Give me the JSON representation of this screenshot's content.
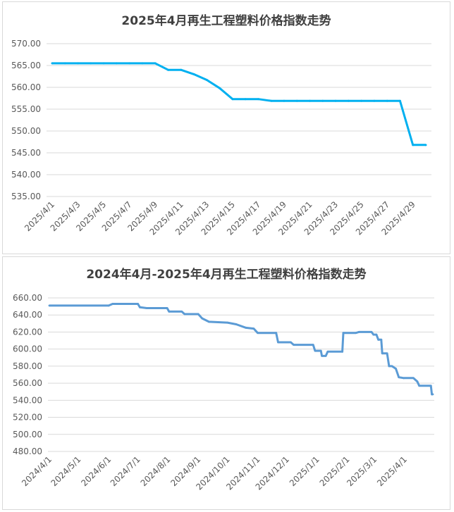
{
  "chart_data": [
    {
      "type": "line",
      "title": "2025年4月再生工程塑料价格指数走势",
      "ylim": [
        535,
        570
      ],
      "yticks": [
        "570.00",
        "565.00",
        "560.00",
        "555.00",
        "550.00",
        "545.00",
        "540.00",
        "535.00"
      ],
      "xticks": [
        "2025/4/1",
        "2025/4/3",
        "2025/4/5",
        "2025/4/7",
        "2025/4/9",
        "2025/4/11",
        "2025/4/13",
        "2025/4/15",
        "2025/4/17",
        "2025/4/19",
        "2025/4/21",
        "2025/4/23",
        "2025/4/25",
        "2025/4/27",
        "2025/4/29"
      ],
      "x": [
        "2025/4/1",
        "2025/4/2",
        "2025/4/3",
        "2025/4/4",
        "2025/4/5",
        "2025/4/6",
        "2025/4/7",
        "2025/4/8",
        "2025/4/9",
        "2025/4/10",
        "2025/4/11",
        "2025/4/12",
        "2025/4/13",
        "2025/4/14",
        "2025/4/15",
        "2025/4/16",
        "2025/4/17",
        "2025/4/18",
        "2025/4/19",
        "2025/4/20",
        "2025/4/21",
        "2025/4/22",
        "2025/4/23",
        "2025/4/24",
        "2025/4/25",
        "2025/4/26",
        "2025/4/27",
        "2025/4/28",
        "2025/4/29",
        "2025/4/30"
      ],
      "values": [
        565.5,
        565.5,
        565.5,
        565.5,
        565.5,
        565.5,
        565.5,
        565.5,
        565.5,
        564.0,
        564.0,
        563.0,
        561.7,
        559.8,
        557.3,
        557.3,
        557.3,
        556.9,
        556.9,
        556.9,
        556.9,
        556.9,
        556.9,
        556.9,
        556.9,
        556.9,
        556.9,
        556.9,
        546.8,
        546.8
      ],
      "color": "#00b0f0",
      "grid": true,
      "legend": "none"
    },
    {
      "type": "line",
      "title": "2024年4月-2025年4月再生工程塑料价格指数走势",
      "ylim": [
        480,
        660
      ],
      "yticks": [
        "660.00",
        "640.00",
        "620.00",
        "600.00",
        "580.00",
        "560.00",
        "540.00",
        "520.00",
        "500.00",
        "480.00"
      ],
      "xticks": [
        "2024/4/1",
        "2024/5/1",
        "2024/6/1",
        "2024/7/1",
        "2024/8/1",
        "2024/9/1",
        "2024/10/1",
        "2024/11/1",
        "2024/12/1",
        "2025/1/1",
        "2025/2/1",
        "2025/3/1",
        "2025/4/1"
      ],
      "x_start": "2024/4/1",
      "x_end": "2025/4/30",
      "points": [
        {
          "x": "2024/4/1",
          "y": 651
        },
        {
          "x": "2024/6/1",
          "y": 651
        },
        {
          "x": "2024/6/5",
          "y": 653
        },
        {
          "x": "2024/7/1",
          "y": 653
        },
        {
          "x": "2024/7/3",
          "y": 649
        },
        {
          "x": "2024/7/10",
          "y": 648
        },
        {
          "x": "2024/7/31",
          "y": 648
        },
        {
          "x": "2024/8/2",
          "y": 644
        },
        {
          "x": "2024/8/15",
          "y": 644
        },
        {
          "x": "2024/8/18",
          "y": 641
        },
        {
          "x": "2024/9/1",
          "y": 641
        },
        {
          "x": "2024/9/5",
          "y": 636
        },
        {
          "x": "2024/9/12",
          "y": 632
        },
        {
          "x": "2024/10/1",
          "y": 631
        },
        {
          "x": "2024/10/10",
          "y": 629
        },
        {
          "x": "2024/10/20",
          "y": 625
        },
        {
          "x": "2024/10/28",
          "y": 624
        },
        {
          "x": "2024/11/1",
          "y": 619
        },
        {
          "x": "2024/11/20",
          "y": 619
        },
        {
          "x": "2024/11/22",
          "y": 608
        },
        {
          "x": "2024/12/5",
          "y": 608
        },
        {
          "x": "2024/12/8",
          "y": 605
        },
        {
          "x": "2024/12/28",
          "y": 605
        },
        {
          "x": "2024/12/30",
          "y": 598
        },
        {
          "x": "2025/1/5",
          "y": 598
        },
        {
          "x": "2025/1/6",
          "y": 592
        },
        {
          "x": "2025/1/10",
          "y": 592
        },
        {
          "x": "2025/1/12",
          "y": 597
        },
        {
          "x": "2025/1/27",
          "y": 597
        },
        {
          "x": "2025/1/28",
          "y": 619
        },
        {
          "x": "2025/2/10",
          "y": 619
        },
        {
          "x": "2025/2/13",
          "y": 620
        },
        {
          "x": "2025/2/26",
          "y": 620
        },
        {
          "x": "2025/2/28",
          "y": 617
        },
        {
          "x": "2025/3/3",
          "y": 617
        },
        {
          "x": "2025/3/5",
          "y": 611
        },
        {
          "x": "2025/3/8",
          "y": 611
        },
        {
          "x": "2025/3/9",
          "y": 595
        },
        {
          "x": "2025/3/14",
          "y": 595
        },
        {
          "x": "2025/3/16",
          "y": 580
        },
        {
          "x": "2025/3/19",
          "y": 580
        },
        {
          "x": "2025/3/23",
          "y": 577
        },
        {
          "x": "2025/3/26",
          "y": 567
        },
        {
          "x": "2025/3/31",
          "y": 566
        },
        {
          "x": "2025/4/10",
          "y": 566
        },
        {
          "x": "2025/4/14",
          "y": 562
        },
        {
          "x": "2025/4/16",
          "y": 557
        },
        {
          "x": "2025/4/28",
          "y": 557
        },
        {
          "x": "2025/4/29",
          "y": 547
        },
        {
          "x": "2025/4/30",
          "y": 547
        }
      ],
      "color": "#5b9bd5",
      "grid": true,
      "legend": "none"
    }
  ]
}
